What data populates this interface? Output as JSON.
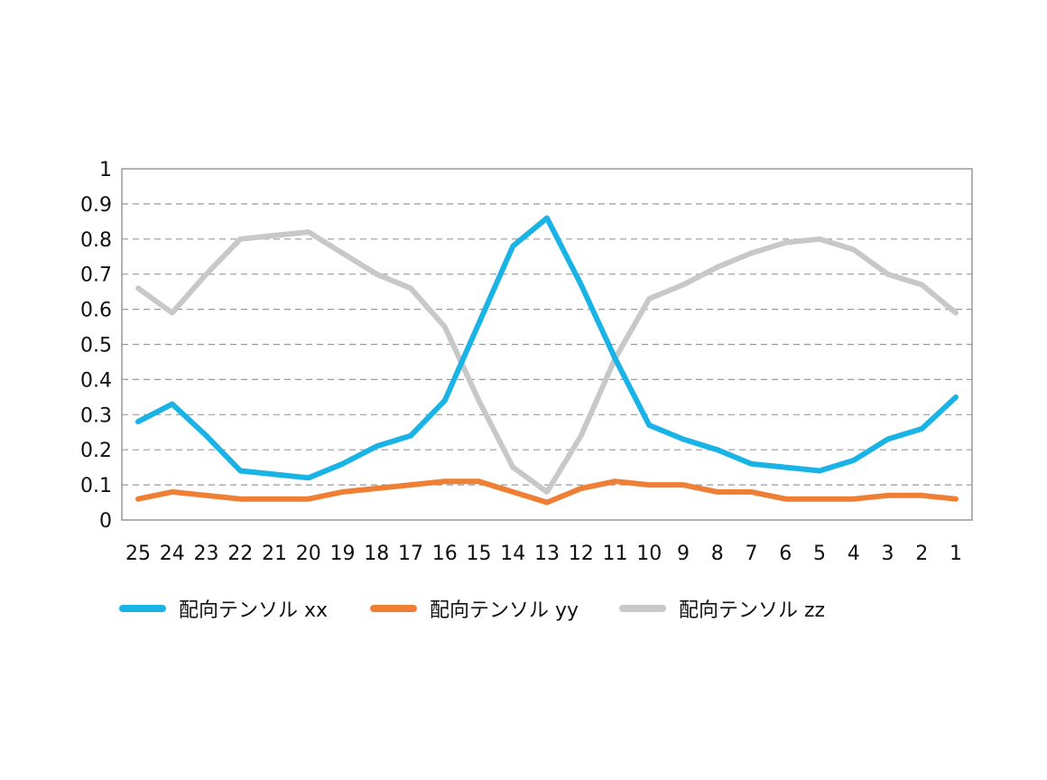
{
  "chart_data": {
    "type": "line",
    "title": "",
    "xlabel": "",
    "ylabel": "",
    "categories": [
      "25",
      "24",
      "23",
      "22",
      "21",
      "20",
      "19",
      "18",
      "17",
      "16",
      "15",
      "14",
      "13",
      "12",
      "11",
      "10",
      "9",
      "8",
      "7",
      "6",
      "5",
      "4",
      "3",
      "2",
      "1"
    ],
    "y_ticks": [
      "0",
      "0.1",
      "0.2",
      "0.3",
      "0.4",
      "0.5",
      "0.6",
      "0.7",
      "0.8",
      "0.9",
      "1"
    ],
    "ylim": [
      0,
      1
    ],
    "grid": "horizontal dashed",
    "legend_position": "bottom",
    "series": [
      {
        "name": "配向テンソル xx",
        "color": "#1ab3e6",
        "values": [
          0.28,
          0.33,
          0.24,
          0.14,
          0.13,
          0.12,
          0.16,
          0.21,
          0.24,
          0.34,
          0.56,
          0.78,
          0.86,
          0.67,
          0.46,
          0.27,
          0.23,
          0.2,
          0.16,
          0.15,
          0.14,
          0.17,
          0.23,
          0.26,
          0.35
        ]
      },
      {
        "name": "配向テンソル yy",
        "color": "#ee7f35",
        "values": [
          0.06,
          0.08,
          0.07,
          0.06,
          0.06,
          0.06,
          0.08,
          0.09,
          0.1,
          0.11,
          0.11,
          0.08,
          0.05,
          0.09,
          0.11,
          0.1,
          0.1,
          0.08,
          0.08,
          0.06,
          0.06,
          0.06,
          0.07,
          0.07,
          0.06
        ]
      },
      {
        "name": "配向テンソル zz",
        "color": "#c8c8c8",
        "values": [
          0.66,
          0.59,
          0.7,
          0.8,
          0.81,
          0.82,
          0.76,
          0.7,
          0.66,
          0.55,
          0.34,
          0.15,
          0.08,
          0.24,
          0.46,
          0.63,
          0.67,
          0.72,
          0.76,
          0.79,
          0.8,
          0.77,
          0.7,
          0.67,
          0.59
        ]
      }
    ]
  }
}
